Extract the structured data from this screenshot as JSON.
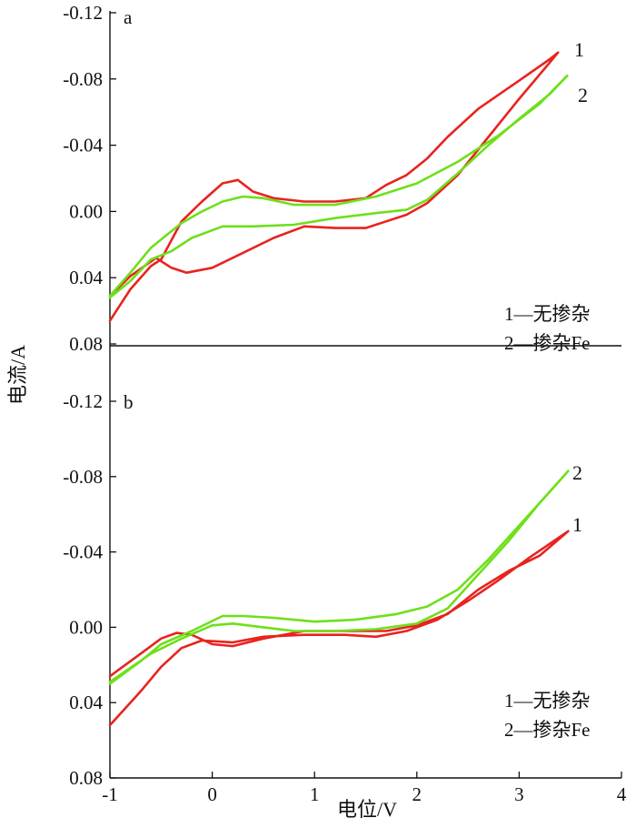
{
  "chart_data": {
    "type": "line",
    "colors": {
      "series_1": "#e8231f",
      "series_2": "#6ee01a"
    },
    "y_ticks": [
      "-0.12",
      "-0.08",
      "-0.04",
      "0.00",
      "0.04",
      "0.08"
    ],
    "y_tick_values": [
      -0.12,
      -0.08,
      -0.04,
      0.0,
      0.04,
      0.08
    ],
    "ylim": [
      0.08,
      -0.12
    ],
    "ylabel": "电流/A",
    "xlabel": "电位/V",
    "x_ticks": [
      "-1",
      "0",
      "1",
      "2",
      "3",
      "4"
    ],
    "x_tick_values": [
      -1,
      0,
      1,
      2,
      3,
      4
    ],
    "xlim": [
      -1,
      4
    ],
    "legend": [
      "1—无掺杂",
      "2—掺杂Fe"
    ],
    "panels": [
      {
        "label": "a",
        "series": [
          {
            "name": "1",
            "color": "#e8231f",
            "loop": [
              [
                -1.0,
                0.066
              ],
              [
                -0.8,
                0.047
              ],
              [
                -0.6,
                0.033
              ],
              [
                -0.5,
                0.029
              ],
              [
                -0.3,
                0.006
              ],
              [
                -0.1,
                -0.006
              ],
              [
                0.1,
                -0.017
              ],
              [
                0.25,
                -0.019
              ],
              [
                0.4,
                -0.012
              ],
              [
                0.6,
                -0.008
              ],
              [
                0.9,
                -0.006
              ],
              [
                1.2,
                -0.006
              ],
              [
                1.5,
                -0.008
              ],
              [
                1.7,
                -0.016
              ],
              [
                1.9,
                -0.022
              ],
              [
                2.1,
                -0.032
              ],
              [
                2.3,
                -0.045
              ],
              [
                2.6,
                -0.062
              ],
              [
                3.0,
                -0.079
              ],
              [
                3.3,
                -0.092
              ],
              [
                3.38,
                -0.096
              ],
              [
                3.3,
                -0.09
              ],
              [
                3.0,
                -0.068
              ],
              [
                2.7,
                -0.045
              ],
              [
                2.4,
                -0.022
              ],
              [
                2.1,
                -0.005
              ],
              [
                1.9,
                0.002
              ],
              [
                1.7,
                0.006
              ],
              [
                1.5,
                0.01
              ],
              [
                1.2,
                0.01
              ],
              [
                0.9,
                0.009
              ],
              [
                0.6,
                0.016
              ],
              [
                0.3,
                0.025
              ],
              [
                0.0,
                0.034
              ],
              [
                -0.25,
                0.037
              ],
              [
                -0.4,
                0.034
              ],
              [
                -0.55,
                0.028
              ],
              [
                -0.8,
                0.039
              ],
              [
                -1.0,
                0.051
              ]
            ]
          },
          {
            "name": "2",
            "color": "#6ee01a",
            "loop": [
              [
                -1.0,
                0.051
              ],
              [
                -0.8,
                0.037
              ],
              [
                -0.6,
                0.022
              ],
              [
                -0.3,
                0.007
              ],
              [
                -0.1,
                0.0
              ],
              [
                0.1,
                -0.006
              ],
              [
                0.3,
                -0.009
              ],
              [
                0.5,
                -0.008
              ],
              [
                0.8,
                -0.004
              ],
              [
                1.2,
                -0.004
              ],
              [
                1.6,
                -0.009
              ],
              [
                2.0,
                -0.017
              ],
              [
                2.4,
                -0.03
              ],
              [
                2.8,
                -0.046
              ],
              [
                3.2,
                -0.065
              ],
              [
                3.47,
                -0.082
              ],
              [
                3.3,
                -0.071
              ],
              [
                3.0,
                -0.056
              ],
              [
                2.7,
                -0.04
              ],
              [
                2.4,
                -0.023
              ],
              [
                2.1,
                -0.007
              ],
              [
                1.9,
                -0.001
              ],
              [
                1.6,
                0.001
              ],
              [
                1.2,
                0.004
              ],
              [
                0.8,
                0.008
              ],
              [
                0.4,
                0.009
              ],
              [
                0.1,
                0.009
              ],
              [
                -0.2,
                0.016
              ],
              [
                -0.4,
                0.024
              ],
              [
                -0.6,
                0.029
              ],
              [
                -0.8,
                0.042
              ],
              [
                -1.0,
                0.052
              ]
            ]
          }
        ],
        "series_labels": [
          "1",
          "2"
        ]
      },
      {
        "label": "b",
        "series": [
          {
            "name": "1",
            "color": "#e8231f",
            "loop": [
              [
                -1.0,
                0.052
              ],
              [
                -0.7,
                0.034
              ],
              [
                -0.5,
                0.021
              ],
              [
                -0.3,
                0.011
              ],
              [
                -0.1,
                0.007
              ],
              [
                0.2,
                0.008
              ],
              [
                0.5,
                0.005
              ],
              [
                0.9,
                0.004
              ],
              [
                1.3,
                0.004
              ],
              [
                1.6,
                0.005
              ],
              [
                1.9,
                0.002
              ],
              [
                2.2,
                -0.004
              ],
              [
                2.5,
                -0.014
              ],
              [
                2.8,
                -0.025
              ],
              [
                3.1,
                -0.037
              ],
              [
                3.48,
                -0.051
              ],
              [
                3.2,
                -0.038
              ],
              [
                2.9,
                -0.03
              ],
              [
                2.6,
                -0.02
              ],
              [
                2.3,
                -0.007
              ],
              [
                2.0,
                -0.001
              ],
              [
                1.7,
                0.002
              ],
              [
                1.3,
                0.002
              ],
              [
                0.9,
                0.002
              ],
              [
                0.5,
                0.006
              ],
              [
                0.2,
                0.01
              ],
              [
                0.0,
                0.009
              ],
              [
                -0.2,
                0.004
              ],
              [
                -0.35,
                0.003
              ],
              [
                -0.5,
                0.006
              ],
              [
                -0.7,
                0.014
              ],
              [
                -1.0,
                0.026
              ]
            ]
          },
          {
            "name": "2",
            "color": "#6ee01a",
            "loop": [
              [
                -1.0,
                0.03
              ],
              [
                -0.7,
                0.018
              ],
              [
                -0.5,
                0.009
              ],
              [
                -0.2,
                0.002
              ],
              [
                0.1,
                -0.006
              ],
              [
                0.3,
                -0.006
              ],
              [
                0.6,
                -0.005
              ],
              [
                1.0,
                -0.003
              ],
              [
                1.4,
                -0.004
              ],
              [
                1.8,
                -0.007
              ],
              [
                2.1,
                -0.011
              ],
              [
                2.4,
                -0.02
              ],
              [
                2.7,
                -0.036
              ],
              [
                3.0,
                -0.054
              ],
              [
                3.3,
                -0.072
              ],
              [
                3.48,
                -0.083
              ],
              [
                3.2,
                -0.066
              ],
              [
                2.9,
                -0.046
              ],
              [
                2.6,
                -0.028
              ],
              [
                2.3,
                -0.01
              ],
              [
                2.0,
                -0.002
              ],
              [
                1.6,
                0.001
              ],
              [
                1.2,
                0.002
              ],
              [
                0.8,
                0.002
              ],
              [
                0.5,
                0.0
              ],
              [
                0.2,
                -0.002
              ],
              [
                0.0,
                -0.001
              ],
              [
                -0.3,
                0.006
              ],
              [
                -0.6,
                0.014
              ],
              [
                -1.0,
                0.029
              ]
            ]
          }
        ],
        "series_labels": [
          "2",
          "1"
        ]
      }
    ]
  }
}
